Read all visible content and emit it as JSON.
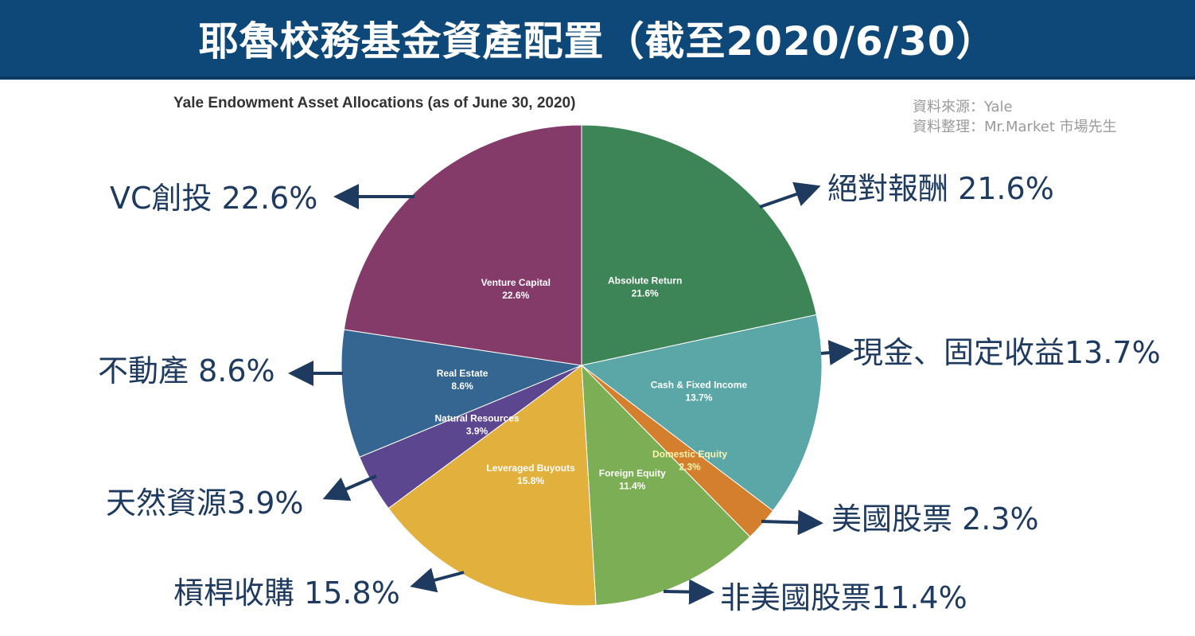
{
  "banner": {
    "title": "耶魯校務基金資產配置（截至2020/6/30）"
  },
  "source_lines": [
    "資料來源：Yale",
    "資料整理：Mr.Market 市場先生"
  ],
  "chart_data": {
    "type": "pie",
    "title": "Yale Endowment Asset Allocations (as of June 30, 2020)",
    "unit": "%",
    "slices": [
      {
        "name": "Absolute Return",
        "value": 21.6,
        "pct_label": "21.6%",
        "color": "#3d8557",
        "label_color": "#ffffff",
        "callout": "絕對報酬 21.6%"
      },
      {
        "name": "Cash & Fixed Income",
        "value": 13.7,
        "pct_label": "13.7%",
        "color": "#5ba6a6",
        "label_color": "#ffffff",
        "callout": "現金、固定收益13.7%"
      },
      {
        "name": "Domestic Equity",
        "value": 2.3,
        "pct_label": "2.3%",
        "color": "#d47f2e",
        "label_color": "#fff5b0",
        "callout": "美國股票 2.3%"
      },
      {
        "name": "Foreign Equity",
        "value": 11.4,
        "pct_label": "11.4%",
        "color": "#7cae55",
        "label_color": "#ffffff",
        "callout": "非美國股票11.4%"
      },
      {
        "name": "Leveraged Buyouts",
        "value": 15.8,
        "pct_label": "15.8%",
        "color": "#e2b03c",
        "label_color": "#ffffff",
        "callout": "槓桿收購 15.8%"
      },
      {
        "name": "Natural Resources",
        "value": 3.9,
        "pct_label": "3.9%",
        "color": "#5c4690",
        "label_color": "#ffffff",
        "callout": "天然資源3.9%"
      },
      {
        "name": "Real Estate",
        "value": 8.6,
        "pct_label": "8.6%",
        "color": "#356591",
        "label_color": "#ffffff",
        "callout": "不動產 8.6%"
      },
      {
        "name": "Venture Capital",
        "value": 22.6,
        "pct_label": "22.6%",
        "color": "#853b6a",
        "label_color": "#ffffff",
        "callout": "VC創投 22.6%"
      }
    ]
  },
  "colors": {
    "banner_bg": "#0e4878",
    "arrow": "#1e3a5f",
    "callout_text": "#1e3a5f"
  }
}
